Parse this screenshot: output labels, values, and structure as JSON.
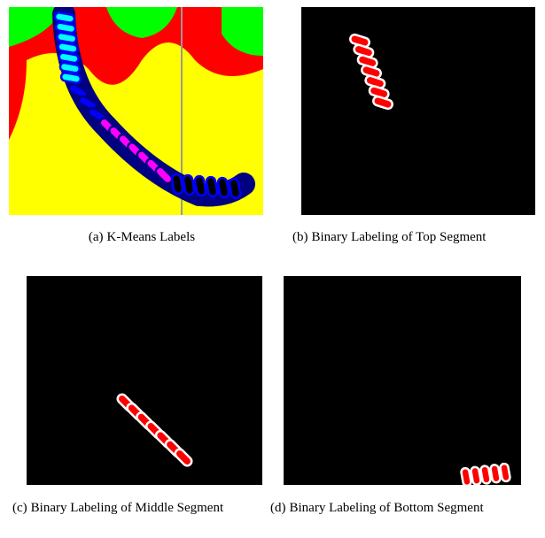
{
  "figures": [
    {
      "label": "(a)",
      "caption": "K-Means Labels"
    },
    {
      "label": "(b)",
      "caption": "Binary Labeling of Top Segment"
    },
    {
      "label": "(c)",
      "caption": "Binary Labeling of Middle Segment"
    },
    {
      "label": "(d)",
      "caption": "Binary Labeling of Bottom Segment"
    }
  ]
}
